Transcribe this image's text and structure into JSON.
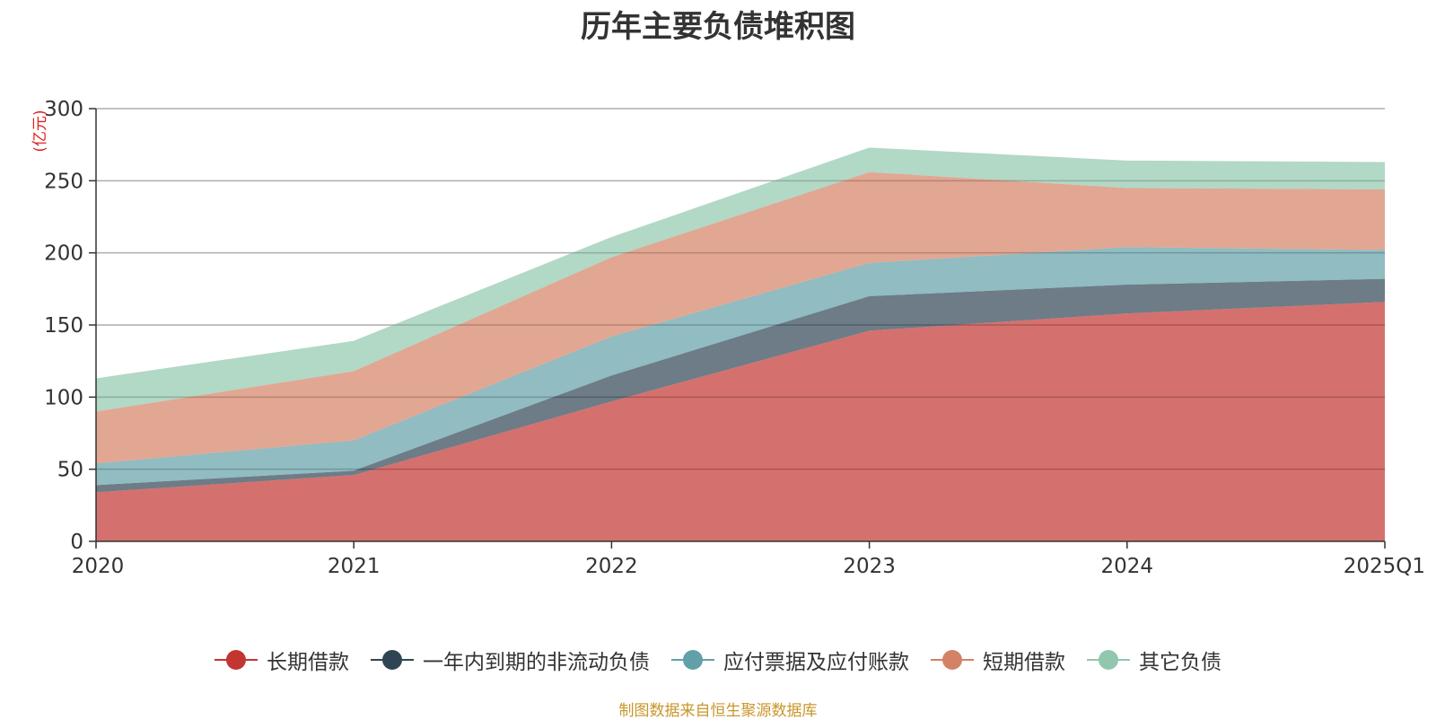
{
  "chart_data": {
    "type": "area",
    "stacked": true,
    "title": "历年主要负债堆积图",
    "unit_label": "(亿元)",
    "categories": [
      "2020",
      "2021",
      "2022",
      "2023",
      "2024",
      "2025Q1"
    ],
    "ylim": [
      0,
      300
    ],
    "yticks": [
      0,
      50,
      100,
      150,
      200,
      250,
      300
    ],
    "grid": true,
    "legend_position": "bottom",
    "series": [
      {
        "name": "长期借款",
        "color": "#c23531",
        "values": [
          34,
          46,
          97,
          146,
          158,
          166
        ]
      },
      {
        "name": "一年内到期的非流动负债",
        "color": "#2f4554",
        "values": [
          5,
          3,
          18,
          24,
          20,
          16
        ]
      },
      {
        "name": "应付票据及应付账款",
        "color": "#61a0a8",
        "values": [
          15,
          21,
          27,
          23,
          26,
          20
        ]
      },
      {
        "name": "短期借款",
        "color": "#d48265",
        "values": [
          36,
          48,
          55,
          63,
          41,
          42
        ]
      },
      {
        "name": "其它负债",
        "color": "#91c7ae",
        "values": [
          23,
          21,
          14,
          17,
          19,
          19
        ]
      }
    ],
    "source_note": "制图数据来自恒生聚源数据库"
  }
}
